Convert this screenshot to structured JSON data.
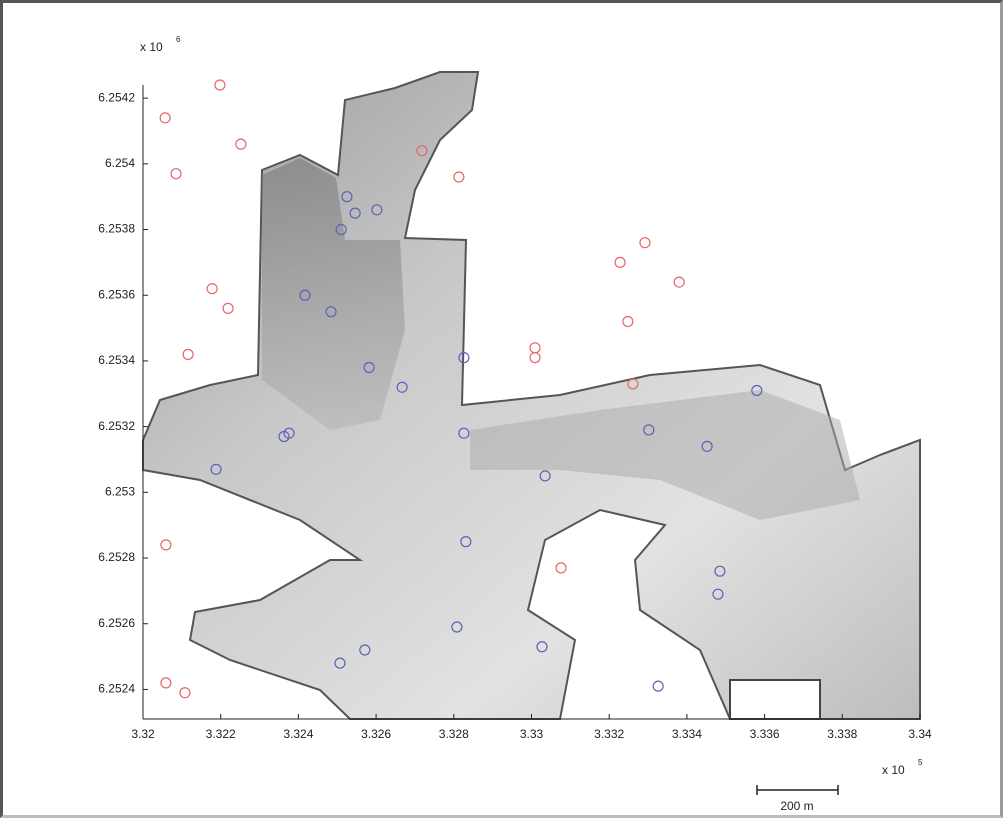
{
  "chart_data": {
    "type": "scatter",
    "x_multiplier": {
      "base": "x 10",
      "exponent": "5"
    },
    "y_multiplier": {
      "base": "x 10",
      "exponent": "6"
    },
    "scale_bar": "200 m",
    "xlim": [
      3.32,
      3.34
    ],
    "ylim": [
      6.25231,
      6.25424
    ],
    "xticks": [
      3.32,
      3.322,
      3.324,
      3.326,
      3.328,
      3.33,
      3.332,
      3.334,
      3.336,
      3.338,
      3.34
    ],
    "yticks": [
      6.2524,
      6.2526,
      6.2528,
      6.253,
      6.2532,
      6.2534,
      6.2536,
      6.2538,
      6.254,
      6.2542
    ],
    "grid": false,
    "series": [
      {
        "color": "#e8656a",
        "x": [
          3.32198,
          3.32057,
          3.32252,
          3.32085,
          3.32718,
          3.32813,
          3.32178,
          3.32219,
          3.32116,
          3.33009,
          3.33009,
          3.33228,
          3.33292,
          3.33248,
          3.3338,
          3.33261,
          3.32059,
          3.33076,
          3.32059,
          3.32108
        ],
        "values": [
          6.25424,
          6.25414,
          6.25406,
          6.25397,
          6.25404,
          6.25396,
          6.25362,
          6.25356,
          6.25342,
          6.25344,
          6.25341,
          6.2537,
          6.25376,
          6.25352,
          6.25364,
          6.25333,
          6.25284,
          6.25277,
          6.25242,
          6.25239
        ]
      },
      {
        "color": "#5a62b8",
        "x": [
          3.32525,
          3.32546,
          3.32602,
          3.3251,
          3.32417,
          3.32484,
          3.32582,
          3.32667,
          3.32826,
          3.32363,
          3.32376,
          3.32188,
          3.32826,
          3.33035,
          3.33302,
          3.33452,
          3.3358,
          3.32831,
          3.33485,
          3.3348,
          3.32808,
          3.32571,
          3.32507,
          3.33027,
          3.33326
        ],
        "values": [
          6.2539,
          6.25385,
          6.25386,
          6.2538,
          6.2536,
          6.25355,
          6.25338,
          6.25332,
          6.25341,
          6.25317,
          6.25318,
          6.25307,
          6.25318,
          6.25305,
          6.25319,
          6.25314,
          6.25331,
          6.25285,
          6.25276,
          6.25269,
          6.25259,
          6.25252,
          6.25248,
          6.25253,
          6.25241
        ]
      }
    ]
  }
}
